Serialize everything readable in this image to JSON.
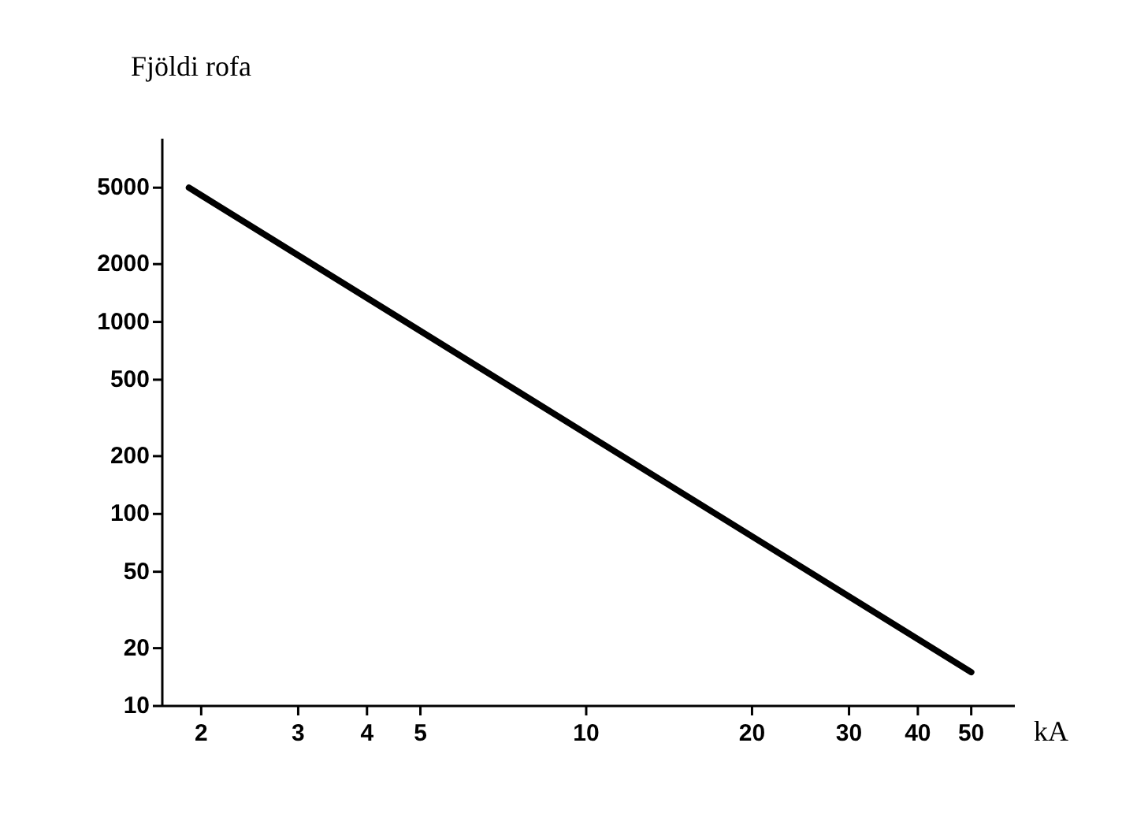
{
  "chart_data": {
    "type": "line",
    "xlabel": "kA",
    "ylabel": "Fjöldi rofa",
    "log": "xy",
    "x": [
      1.9,
      50
    ],
    "series": [
      {
        "color": "#000000",
        "values": [
          5000,
          15
        ]
      }
    ],
    "xlim": [
      1.7,
      60
    ],
    "xticks": [
      2,
      3,
      4,
      5,
      10,
      20,
      30,
      40,
      50
    ],
    "ylim": [
      10,
      9000
    ],
    "yticks": [
      10,
      20,
      50,
      100,
      200,
      500,
      1000,
      2000,
      5000
    ],
    "grid": false,
    "line_style": "solid"
  }
}
